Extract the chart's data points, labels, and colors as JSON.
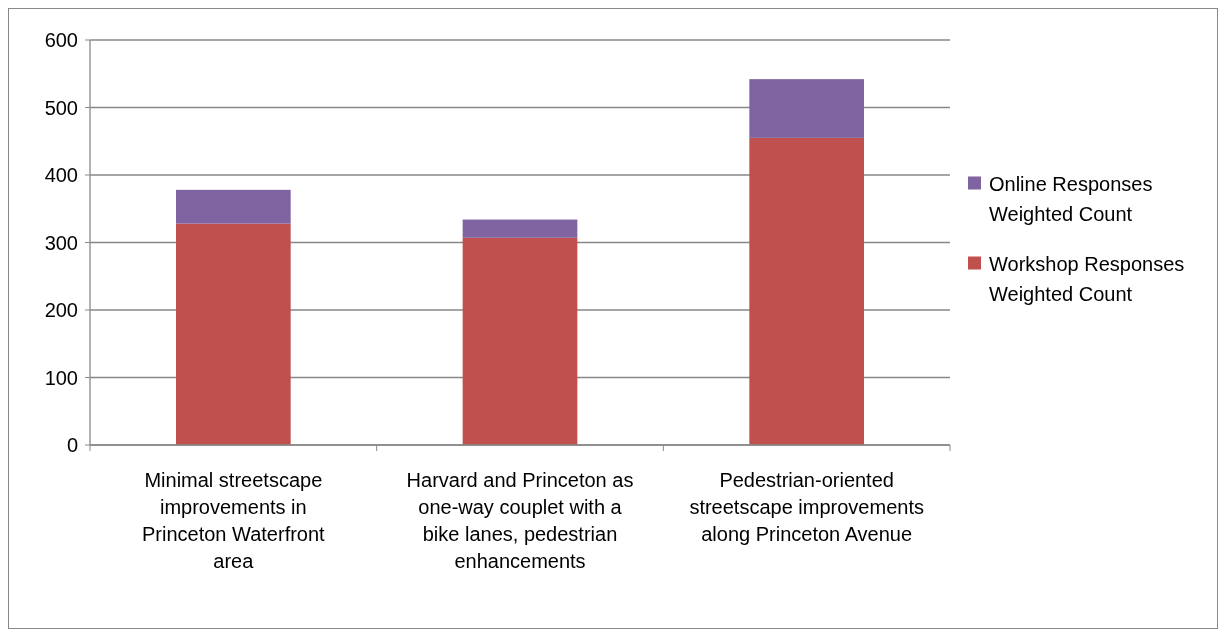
{
  "chart_data": {
    "type": "bar",
    "stacked": true,
    "categories": [
      "Minimal streetscape improvements in Princeton Waterfront area",
      "Harvard and Princeton as one-way couplet with a bike lanes, pedestrian enhancements",
      "Pedestrian-oriented streetscape improvements along Princeton Avenue"
    ],
    "series": [
      {
        "name": "Workshop Responses Weighted Count",
        "color": "#c0504d",
        "values": [
          328,
          307,
          455
        ]
      },
      {
        "name": "Online Responses Weighted Count",
        "color": "#8064a2",
        "values": [
          50,
          27,
          87
        ]
      }
    ],
    "ylim": [
      0,
      600
    ],
    "yticks": [
      0,
      100,
      200,
      300,
      400,
      500,
      600
    ],
    "grid": "y",
    "legend": "right"
  }
}
